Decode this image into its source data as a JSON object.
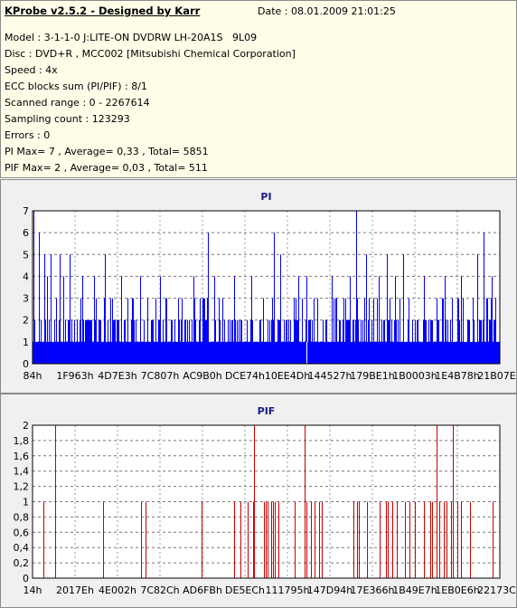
{
  "app": {
    "title": "KProbe v2.5.2 - Designed by Karr",
    "date": "Date : 08.01.2009 21:01:25"
  },
  "info_lines": [
    "Model : 3-1-1-0 J:LITE-ON DVDRW LH-20A1S   9L09",
    "Disc : DVD+R , MCC002 [Mitsubishi Chemical Corporation]",
    "Speed : 4x",
    "ECC blocks sum (PI/PIF) : 8/1",
    "Scanned range : 0 - 2267614",
    "Sampling count : 123293",
    "Errors : 0",
    "PI Max= 7 , Average= 0,33 , Total= 5851",
    "PIF Max= 2 , Average= 0,03 , Total= 511"
  ],
  "colors": {
    "info_bg": "#fefde8",
    "panel_bg": "#f0f0f0",
    "pi_bar": "#0000ff",
    "pif_bar": "#cc0000",
    "title": "#1a1a8a"
  },
  "chart_data": [
    {
      "type": "bar",
      "title": "PI",
      "ylim": [
        0,
        7
      ],
      "y_ticks": [
        "0",
        "1",
        "2",
        "3",
        "4",
        "5",
        "6",
        "7"
      ],
      "x_ticks": [
        "84h",
        "1F963h",
        "4D7E3h",
        "7C807h",
        "AC9B0h",
        "DCE74h",
        "10EE4Dh",
        "144527h",
        "179BE1h",
        "1B0003h",
        "1E4B78h",
        "21B07Eh"
      ],
      "x_range": [
        132,
        2267614
      ],
      "grid": true,
      "baseline": 1,
      "values_summary": {
        "max": 7,
        "average": 0.33,
        "total": 5851
      },
      "spikes": [
        {
          "x": 6000,
          "y": 7
        },
        {
          "x": 30000,
          "y": 6
        },
        {
          "x": 55000,
          "y": 5
        },
        {
          "x": 70000,
          "y": 4
        },
        {
          "x": 90000,
          "y": 5
        },
        {
          "x": 130000,
          "y": 5
        },
        {
          "x": 150000,
          "y": 4
        },
        {
          "x": 180000,
          "y": 5
        },
        {
          "x": 240000,
          "y": 4
        },
        {
          "x": 300000,
          "y": 4
        },
        {
          "x": 350000,
          "y": 5
        },
        {
          "x": 430000,
          "y": 4
        },
        {
          "x": 520000,
          "y": 4
        },
        {
          "x": 620000,
          "y": 4
        },
        {
          "x": 780000,
          "y": 4
        },
        {
          "x": 850000,
          "y": 6
        },
        {
          "x": 880000,
          "y": 4
        },
        {
          "x": 980000,
          "y": 4
        },
        {
          "x": 1060000,
          "y": 4
        },
        {
          "x": 1170000,
          "y": 6
        },
        {
          "x": 1200000,
          "y": 5
        },
        {
          "x": 1290000,
          "y": 4
        },
        {
          "x": 1330000,
          "y": 4
        },
        {
          "x": 1450000,
          "y": 4
        },
        {
          "x": 1540000,
          "y": 4
        },
        {
          "x": 1570000,
          "y": 7
        },
        {
          "x": 1620000,
          "y": 5
        },
        {
          "x": 1680000,
          "y": 4
        },
        {
          "x": 1720000,
          "y": 5
        },
        {
          "x": 1760000,
          "y": 4
        },
        {
          "x": 1800000,
          "y": 5
        },
        {
          "x": 1900000,
          "y": 4
        },
        {
          "x": 2000000,
          "y": 4
        },
        {
          "x": 2080000,
          "y": 4
        },
        {
          "x": 2160000,
          "y": 5
        },
        {
          "x": 2190000,
          "y": 6
        },
        {
          "x": 2230000,
          "y": 4
        }
      ],
      "dips": [
        {
          "x": 1330000,
          "y": 0
        }
      ]
    },
    {
      "type": "bar",
      "title": "PIF",
      "ylim": [
        0,
        2
      ],
      "y_ticks": [
        "0",
        "0,2",
        "0,4",
        "0,6",
        "0,8",
        "1",
        "1,2",
        "1,4",
        "1,6",
        "1,8",
        "2"
      ],
      "x_ticks": [
        "14h",
        "2017Eh",
        "4E002h",
        "7C82Ch",
        "AD6FBh",
        "DE5ECh",
        "111795h",
        "147D94h",
        "17E366h",
        "1B49E7h",
        "1EB0E6h",
        "22173Ch"
      ],
      "x_range": [
        20,
        2234172
      ],
      "grid": true,
      "values_summary": {
        "max": 2,
        "average": 0.03,
        "total": 511
      },
      "bars": [
        {
          "x": 50000,
          "y": 1
        },
        {
          "x": 110000,
          "y": 2
        },
        {
          "x": 335000,
          "y": 1
        },
        {
          "x": 520000,
          "y": 1
        },
        {
          "x": 540000,
          "y": 1
        },
        {
          "x": 810000,
          "y": 1
        },
        {
          "x": 965000,
          "y": 1
        },
        {
          "x": 995000,
          "y": 1
        },
        {
          "x": 1030000,
          "y": 1
        },
        {
          "x": 1055000,
          "y": 1
        },
        {
          "x": 1060000,
          "y": 2
        },
        {
          "x": 1105000,
          "y": 1
        },
        {
          "x": 1115000,
          "y": 1
        },
        {
          "x": 1125000,
          "y": 1
        },
        {
          "x": 1140000,
          "y": 1
        },
        {
          "x": 1150000,
          "y": 1
        },
        {
          "x": 1160000,
          "y": 1
        },
        {
          "x": 1175000,
          "y": 1
        },
        {
          "x": 1255000,
          "y": 1
        },
        {
          "x": 1300000,
          "y": 2
        },
        {
          "x": 1310000,
          "y": 1
        },
        {
          "x": 1330000,
          "y": 1
        },
        {
          "x": 1350000,
          "y": 1
        },
        {
          "x": 1370000,
          "y": 1
        },
        {
          "x": 1385000,
          "y": 1
        },
        {
          "x": 1535000,
          "y": 1
        },
        {
          "x": 1550000,
          "y": 1
        },
        {
          "x": 1560000,
          "y": 1
        },
        {
          "x": 1600000,
          "y": 1
        },
        {
          "x": 1660000,
          "y": 1
        },
        {
          "x": 1690000,
          "y": 1
        },
        {
          "x": 1700000,
          "y": 1
        },
        {
          "x": 1720000,
          "y": 1
        },
        {
          "x": 1740000,
          "y": 1
        },
        {
          "x": 1780000,
          "y": 1
        },
        {
          "x": 1800000,
          "y": 1
        },
        {
          "x": 1830000,
          "y": 1
        },
        {
          "x": 1870000,
          "y": 1
        },
        {
          "x": 1900000,
          "y": 1
        },
        {
          "x": 1910000,
          "y": 1
        },
        {
          "x": 1930000,
          "y": 2
        },
        {
          "x": 1945000,
          "y": 1
        },
        {
          "x": 1965000,
          "y": 1
        },
        {
          "x": 1980000,
          "y": 1
        },
        {
          "x": 2000000,
          "y": 1
        },
        {
          "x": 2010000,
          "y": 2
        },
        {
          "x": 2030000,
          "y": 1
        },
        {
          "x": 2050000,
          "y": 1
        },
        {
          "x": 2090000,
          "y": 1
        },
        {
          "x": 2200000,
          "y": 1
        }
      ]
    }
  ]
}
